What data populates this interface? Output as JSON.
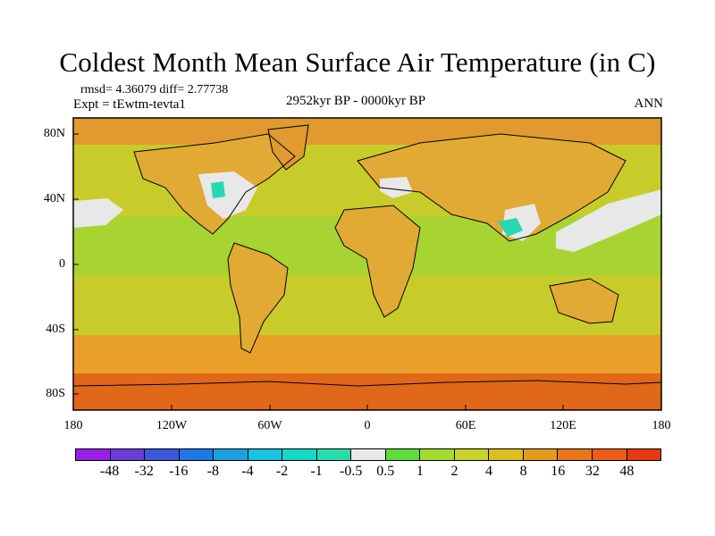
{
  "title": "Coldest Month Mean Surface Air Temperature (in C)",
  "stats": "rmsd= 4.36079 diff= 2.77738",
  "experiment": "Expt = tEwtm-tevta1",
  "period": "2952kyr BP - 0000kyr BP",
  "season": "ANN",
  "lat_labels": [
    "80N",
    "40N",
    "0",
    "40S",
    "80S"
  ],
  "lon_labels": [
    "180",
    "120W",
    "60W",
    "0",
    "60E",
    "120E",
    "180"
  ],
  "colorbar": {
    "labels": [
      "-48",
      "-32",
      "-16",
      "-8",
      "-4",
      "-2",
      "-1",
      "-0.5",
      "0.5",
      "1",
      "2",
      "4",
      "8",
      "16",
      "32",
      "48"
    ],
    "colors": [
      "#9a1fe6",
      "#6a3dd8",
      "#3a58d8",
      "#1e78e6",
      "#1aa0e0",
      "#18c2e0",
      "#16d6c4",
      "#28dcaa",
      "#e8e8e8",
      "#5edc3a",
      "#a2dc2e",
      "#c8d42a",
      "#dcbe20",
      "#e49a1c",
      "#ea761a",
      "#ee5a16",
      "#e83a10"
    ]
  },
  "regions": {
    "ocean": "#c8cc2a",
    "land": "#e0aa34",
    "south_ocean": "#e8a028",
    "tropics": "#a8d432",
    "high_lat": "#e09a30",
    "antarctica": "#e06818",
    "near_zero": "#e8e8e8",
    "cool": "#28d8b4"
  }
}
